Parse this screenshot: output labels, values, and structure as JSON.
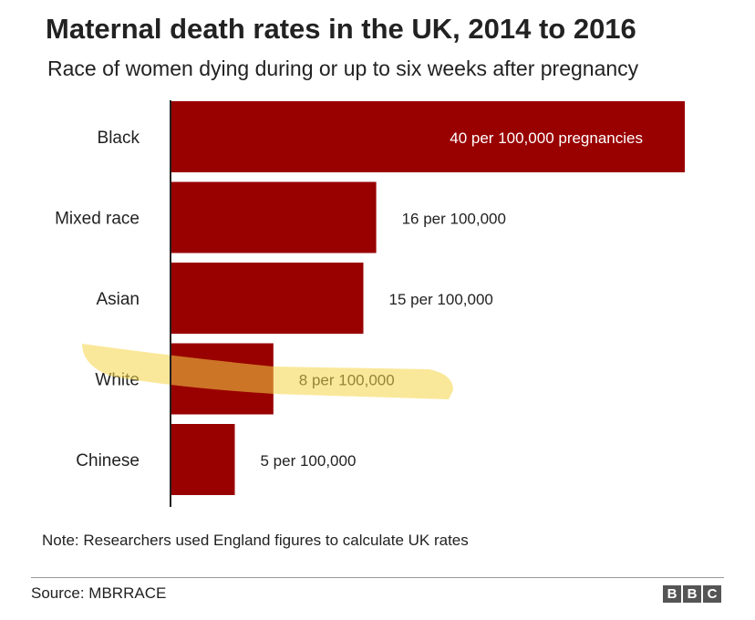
{
  "header": {
    "title": "Maternal death rates in the UK, 2014 to 2016",
    "subtitle": "Race of women dying during or up to six weeks after pregnancy"
  },
  "chart_data": {
    "type": "bar",
    "orientation": "horizontal",
    "categories": [
      "Black",
      "Mixed race",
      "Asian",
      "White",
      "Chinese"
    ],
    "values": [
      40,
      16,
      15,
      8,
      5
    ],
    "data_labels": [
      "40 per 100,000 pregnancies",
      "16 per 100,000",
      "15 per 100,000",
      "8 per 100,000",
      "5 per 100,000"
    ],
    "unit": "per 100,000 pregnancies",
    "xlim": [
      0,
      40
    ],
    "grid": false,
    "bar_color": "#990000",
    "highlight": {
      "category": "White",
      "color": "#f5d547"
    }
  },
  "footer": {
    "note": "Note: Researchers used England figures to calculate UK rates",
    "source": "Source: MBRRACE",
    "logo_letters": [
      "B",
      "B",
      "C"
    ]
  }
}
